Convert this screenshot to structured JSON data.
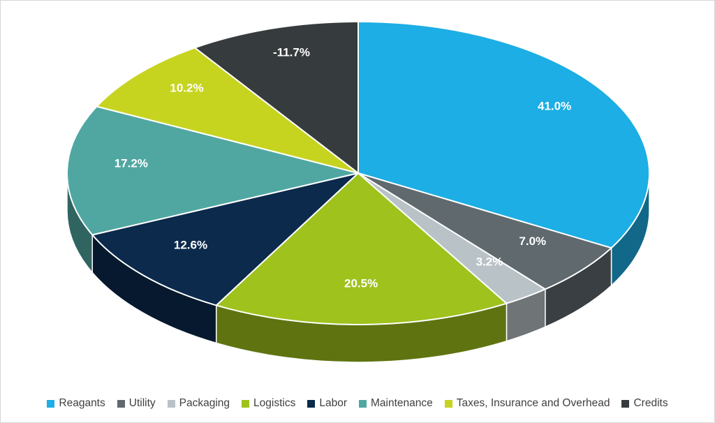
{
  "chart_data": {
    "type": "pie",
    "style": "3d",
    "title": "",
    "legend_position": "bottom",
    "direction": "clockwise",
    "start_angle_deg": 0,
    "label_format": "percent",
    "label_color": "#FFFFFF",
    "background_color": "#FFFFFF",
    "categories": [
      "Reagants",
      "Utility",
      "Packaging",
      "Logistics",
      "Labor",
      "Maintenance",
      "Taxes, Insurance and Overhead",
      "Credits"
    ],
    "values": [
      41.0,
      7.0,
      3.2,
      20.5,
      12.6,
      17.2,
      10.2,
      -11.7
    ],
    "slices": [
      {
        "label": "Reagants",
        "value": 41.0,
        "display": "41.0%",
        "color": "#1CAEE4"
      },
      {
        "label": "Utility",
        "value": 7.0,
        "display": "7.0%",
        "color": "#5F696E"
      },
      {
        "label": "Packaging",
        "value": 3.2,
        "display": "3.2%",
        "color": "#B9C2C7"
      },
      {
        "label": "Logistics",
        "value": 20.5,
        "display": "20.5%",
        "color": "#9FC21D"
      },
      {
        "label": "Labor",
        "value": 12.6,
        "display": "12.6%",
        "color": "#0B2A4C"
      },
      {
        "label": "Maintenance",
        "value": 17.2,
        "display": "17.2%",
        "color": "#50A7A2"
      },
      {
        "label": "Taxes, Insurance and Overhead",
        "value": 10.2,
        "display": "10.2%",
        "color": "#C6D41F"
      },
      {
        "label": "Credits",
        "value": -11.7,
        "display": "-11.7%",
        "color": "#363B3D"
      }
    ]
  }
}
